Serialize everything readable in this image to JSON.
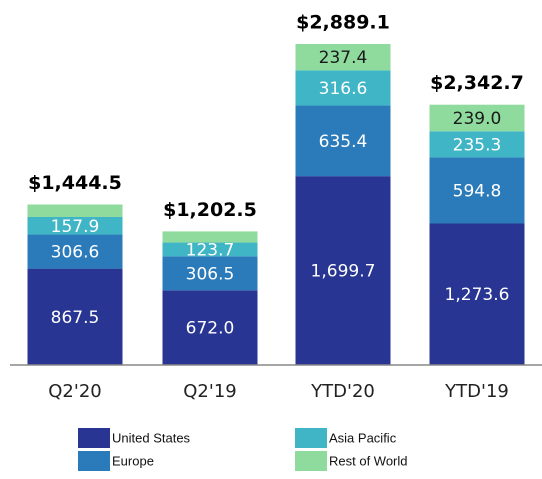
{
  "chart_data": {
    "type": "stacked_bar",
    "categories": [
      "Q2'20",
      "Q2'19",
      "YTD'20",
      "YTD'19"
    ],
    "series": [
      {
        "name": "United States",
        "color": "#283593",
        "values": [
          867.5,
          672.0,
          1699.7,
          1273.6
        ],
        "value_labels": [
          "867.5",
          "672.0",
          "1,699.7",
          "1,273.6"
        ]
      },
      {
        "name": "Europe",
        "color": "#2b7bba",
        "values": [
          306.6,
          306.5,
          635.4,
          594.8
        ],
        "value_labels": [
          "306.6",
          "306.5",
          "635.4",
          "594.8"
        ]
      },
      {
        "name": "Asia Pacific",
        "color": "#3fb5c6",
        "values": [
          157.9,
          123.7,
          316.6,
          235.3
        ],
        "value_labels": [
          "157.9",
          "123.7",
          "316.6",
          "235.3"
        ]
      },
      {
        "name": "Rest of World",
        "color": "#8fdb9e",
        "values": [
          112.5,
          100.3,
          237.4,
          239.0
        ],
        "value_labels": [
          null,
          null,
          "237.4",
          "239.0"
        ]
      }
    ],
    "totals": [
      1444.5,
      1202.5,
      2889.1,
      2342.7
    ],
    "total_labels": [
      "$1,444.5",
      "$1,202.5",
      "$2,889.1",
      "$2,342.7"
    ]
  }
}
